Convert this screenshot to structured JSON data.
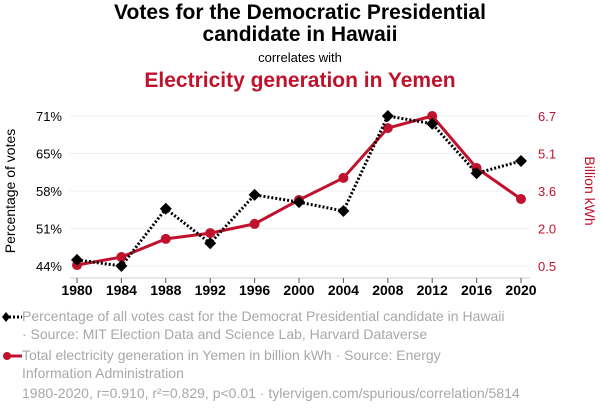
{
  "header": {
    "title": "Votes for the Democratic Presidential candidate in Hawaii",
    "title_line1": "Votes for the Democratic Presidential",
    "title_line2": "candidate in Hawaii",
    "connector": "correlates with",
    "subtitle": "Electricity generation in Yemen"
  },
  "colors": {
    "series1": "#000000",
    "series2": "#c0122c",
    "legend_text": "#a8a8a8",
    "grid": "#efefef"
  },
  "chart_data": {
    "type": "line",
    "title": "Votes for the Democratic Presidential candidate in Hawaii correlates with Electricity generation in Yemen",
    "x": [
      1980,
      1984,
      1988,
      1992,
      1996,
      2000,
      2004,
      2008,
      2012,
      2016,
      2020
    ],
    "xlabel": "",
    "x_tick_labels": [
      "1980",
      "1984",
      "1988",
      "1992",
      "1996",
      "2000",
      "2004",
      "2008",
      "2012",
      "2016",
      "2020"
    ],
    "ylabel_left": "Percentage of votes",
    "ylabel_right": "Billion kWh",
    "ylim_left": [
      44,
      71
    ],
    "ylim_right": [
      0.5,
      6.7
    ],
    "y_left_ticks": [
      "44%",
      "51%",
      "58%",
      "65%",
      "71%"
    ],
    "y_right_ticks": [
      "0.5",
      "2.0",
      "3.6",
      "5.1",
      "6.7"
    ],
    "grid": true,
    "legend_position": "bottom",
    "series": [
      {
        "name": "Percentage of all votes cast for the Democrat Presidential candidate in Hawaii",
        "axis": "left",
        "marker": "diamond",
        "line_style": "dotted",
        "values": [
          45.1,
          44.0,
          54.3,
          48.1,
          56.8,
          55.5,
          53.9,
          71.0,
          69.6,
          60.7,
          62.9
        ]
      },
      {
        "name": "Total electricity generation in Yemen in billion kWh",
        "axis": "right",
        "marker": "circle",
        "line_style": "solid",
        "values": [
          0.54,
          0.87,
          1.62,
          1.86,
          2.24,
          3.23,
          4.14,
          6.2,
          6.7,
          4.55,
          3.27
        ]
      }
    ]
  },
  "legend": {
    "series1_line1": "Percentage of all votes cast for the Democrat Presidential candidate in Hawaii",
    "series1_line2": "· Source: MIT Election Data and Science Lab, Harvard Dataverse",
    "series2_line1": "Total electricity generation in Yemen in billion kWh · Source: Energy",
    "series2_line2": "Information Administration"
  },
  "footer": "1980-2020, r=0.910, r²=0.829, p<0.01 · tylervigen.com/spurious/correlation/5814"
}
